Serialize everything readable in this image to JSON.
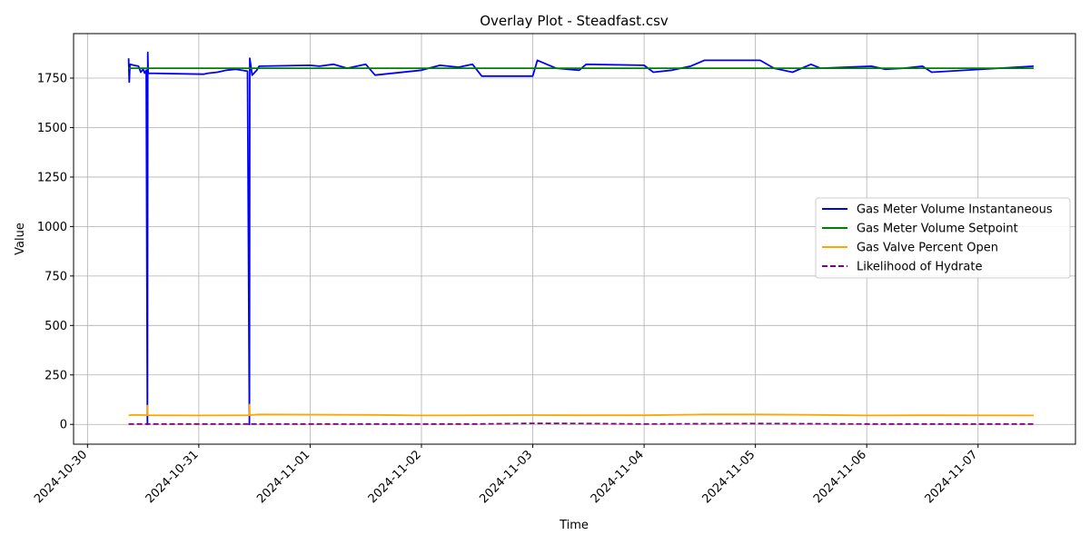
{
  "chart_data": {
    "type": "line",
    "title": "Overlay Plot - Steadfast.csv",
    "xlabel": "Time",
    "ylabel": "Value",
    "x_ticks": [
      "2024-10-30",
      "2024-10-31",
      "2024-11-01",
      "2024-11-02",
      "2024-11-03",
      "2024-11-04",
      "2024-11-05",
      "2024-11-06",
      "2024-11-07"
    ],
    "y_ticks": [
      0,
      250,
      500,
      750,
      1000,
      1250,
      1500,
      1750
    ],
    "xlim": [
      "2024-10-29 21:00",
      "2024-11-07 21:00"
    ],
    "ylim": [
      -100,
      1975
    ],
    "grid": true,
    "legend_position": "center-right",
    "series": [
      {
        "name": "Gas Meter Volume Instantaneous",
        "color": "#0000ff",
        "style": "solid",
        "points": [
          [
            "2024-10-30 08:52",
            1850
          ],
          [
            "2024-10-30 09:00",
            1730
          ],
          [
            "2024-10-30 09:10",
            1820
          ],
          [
            "2024-10-30 10:00",
            1815
          ],
          [
            "2024-10-30 11:00",
            1810
          ],
          [
            "2024-10-30 11:30",
            1780
          ],
          [
            "2024-10-30 12:00",
            1795
          ],
          [
            "2024-10-30 12:20",
            1775
          ],
          [
            "2024-10-30 12:40",
            1790
          ],
          [
            "2024-10-30 12:55",
            0
          ],
          [
            "2024-10-30 13:00",
            1880
          ],
          [
            "2024-10-30 13:05",
            1775
          ],
          [
            "2024-10-31 01:00",
            1770
          ],
          [
            "2024-10-31 02:00",
            1775
          ],
          [
            "2024-10-31 04:00",
            1780
          ],
          [
            "2024-10-31 06:00",
            1790
          ],
          [
            "2024-10-31 08:00",
            1795
          ],
          [
            "2024-10-31 10:30",
            1785
          ],
          [
            "2024-10-31 10:55",
            0
          ],
          [
            "2024-10-31 11:00",
            1850
          ],
          [
            "2024-10-31 11:30",
            1765
          ],
          [
            "2024-10-31 12:30",
            1790
          ],
          [
            "2024-10-31 13:00",
            1810
          ],
          [
            "2024-11-01 00:00",
            1815
          ],
          [
            "2024-11-01 02:00",
            1810
          ],
          [
            "2024-11-01 05:00",
            1820
          ],
          [
            "2024-11-01 08:00",
            1800
          ],
          [
            "2024-11-01 12:00",
            1820
          ],
          [
            "2024-11-01 14:00",
            1765
          ],
          [
            "2024-11-02 00:00",
            1790
          ],
          [
            "2024-11-02 04:00",
            1815
          ],
          [
            "2024-11-02 08:00",
            1805
          ],
          [
            "2024-11-02 11:00",
            1820
          ],
          [
            "2024-11-02 13:00",
            1760
          ],
          [
            "2024-11-03 00:00",
            1760
          ],
          [
            "2024-11-03 01:00",
            1840
          ],
          [
            "2024-11-03 05:00",
            1800
          ],
          [
            "2024-11-03 10:00",
            1790
          ],
          [
            "2024-11-03 11:30",
            1820
          ],
          [
            "2024-11-04 00:00",
            1815
          ],
          [
            "2024-11-04 02:00",
            1780
          ],
          [
            "2024-11-04 06:00",
            1790
          ],
          [
            "2024-11-04 10:00",
            1810
          ],
          [
            "2024-11-04 13:00",
            1840
          ],
          [
            "2024-11-05 01:00",
            1840
          ],
          [
            "2024-11-05 04:00",
            1800
          ],
          [
            "2024-11-05 08:00",
            1780
          ],
          [
            "2024-11-05 12:00",
            1820
          ],
          [
            "2024-11-05 14:00",
            1800
          ],
          [
            "2024-11-06 01:00",
            1810
          ],
          [
            "2024-11-06 04:00",
            1795
          ],
          [
            "2024-11-06 08:00",
            1800
          ],
          [
            "2024-11-06 12:00",
            1810
          ],
          [
            "2024-11-06 14:00",
            1780
          ],
          [
            "2024-11-07 12:00",
            1810
          ]
        ]
      },
      {
        "name": "Gas Meter Volume Setpoint",
        "color": "#008000",
        "style": "solid",
        "points": [
          [
            "2024-10-30 08:52",
            1800
          ],
          [
            "2024-11-06 00:00",
            1800
          ],
          [
            "2024-11-07 00:00",
            1800
          ],
          [
            "2024-11-07 12:00",
            1800
          ]
        ]
      },
      {
        "name": "Gas Valve Percent Open",
        "color": "#ffa500",
        "style": "solid",
        "points": [
          [
            "2024-10-30 08:52",
            45
          ],
          [
            "2024-10-30 09:30",
            48
          ],
          [
            "2024-10-30 12:55",
            47
          ],
          [
            "2024-10-30 12:57",
            95
          ],
          [
            "2024-10-30 13:00",
            46
          ],
          [
            "2024-10-31 00:00",
            45
          ],
          [
            "2024-10-31 10:55",
            46
          ],
          [
            "2024-10-31 10:57",
            100
          ],
          [
            "2024-10-31 11:00",
            47
          ],
          [
            "2024-10-31 13:00",
            50
          ],
          [
            "2024-11-01 14:00",
            48
          ],
          [
            "2024-11-02 00:00",
            45
          ],
          [
            "2024-11-03 00:00",
            47
          ],
          [
            "2024-11-03 10:00",
            46
          ],
          [
            "2024-11-04 00:00",
            46
          ],
          [
            "2024-11-04 13:00",
            50
          ],
          [
            "2024-11-05 00:00",
            50
          ],
          [
            "2024-11-05 14:00",
            48
          ],
          [
            "2024-11-06 00:00",
            45
          ],
          [
            "2024-11-06 12:00",
            46
          ],
          [
            "2024-11-07 12:00",
            45
          ]
        ]
      },
      {
        "name": "Likelihood of Hydrate",
        "color": "#800080",
        "style": "dashed",
        "points": [
          [
            "2024-10-30 08:52",
            2
          ],
          [
            "2024-11-02 12:00",
            2
          ],
          [
            "2024-11-03 00:00",
            5
          ],
          [
            "2024-11-03 12:00",
            4
          ],
          [
            "2024-11-04 00:00",
            2
          ],
          [
            "2024-11-05 00:00",
            4
          ],
          [
            "2024-11-06 00:00",
            2
          ],
          [
            "2024-11-07 12:00",
            2
          ]
        ]
      }
    ]
  }
}
